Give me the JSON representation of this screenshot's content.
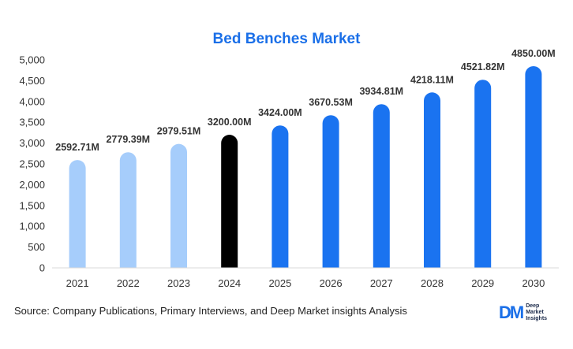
{
  "chart_data": {
    "type": "bar",
    "title": "Bed Benches Market",
    "xlabel": "",
    "ylabel": "",
    "ylim": [
      0,
      5000
    ],
    "ytick_step": 500,
    "yticks": [
      "0",
      "500",
      "1,000",
      "1,500",
      "2,000",
      "2,500",
      "3,000",
      "3,500",
      "4,000",
      "4,500",
      "5,000"
    ],
    "grid": false,
    "categories": [
      "2021",
      "2022",
      "2023",
      "2024",
      "2025",
      "2026",
      "2027",
      "2028",
      "2029",
      "2030"
    ],
    "values": [
      2592.71,
      2779.39,
      2979.51,
      3200.0,
      3424.0,
      3670.53,
      3934.81,
      4218.11,
      4521.82,
      4850.0
    ],
    "data_labels": [
      "2592.71M",
      "2779.39M",
      "2979.51M",
      "3200.00M",
      "3424.00M",
      "3670.53M",
      "3934.81M",
      "4218.11M",
      "4521.82M",
      "4850.00M"
    ],
    "bar_colors": [
      "#a6cdfb",
      "#a6cdfb",
      "#a6cdfb",
      "#000000",
      "#1a73f0",
      "#1a73f0",
      "#1a73f0",
      "#1a73f0",
      "#1a73f0",
      "#1a73f0"
    ]
  },
  "footer": {
    "source_label": "Source",
    "source_text": ": Company Publications, Primary Interviews, and Deep Market insights Analysis"
  },
  "logo": {
    "mark": "DM",
    "line1": "Deep",
    "line2": "Market",
    "line3": "Insights"
  },
  "colors": {
    "title": "#1a6fe8",
    "historical": "#a6cdfb",
    "base_year": "#000000",
    "forecast": "#1a73f0"
  }
}
